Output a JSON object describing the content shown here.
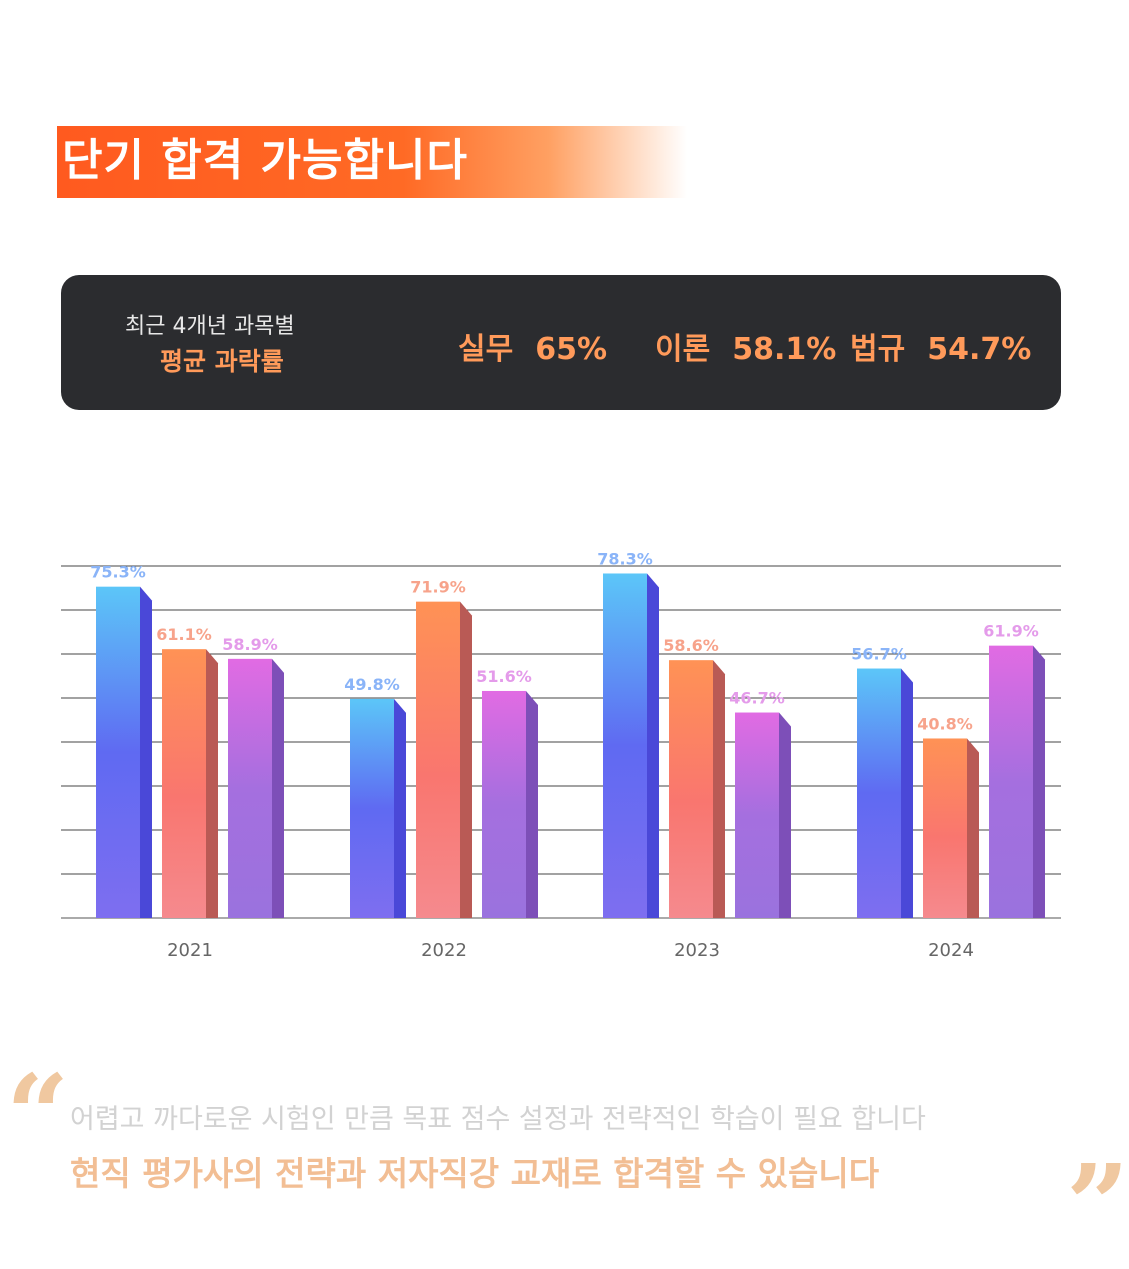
{
  "headline": {
    "highlight": "단기 합격 가능합니다"
  },
  "stats": {
    "label_line1": "최근 4개년 과목별",
    "label_line2": "평균 과락률",
    "items": [
      {
        "name": "실무",
        "value": "65%"
      },
      {
        "name": "이론",
        "value": "58.1%"
      },
      {
        "name": "법규",
        "value": "54.7%"
      }
    ]
  },
  "colors": {
    "accent": "#ff6a25",
    "stat_text": "#ff9a5a",
    "box_bg": "#2b2c2f",
    "series_blue": "#5b78f5",
    "series_orange": "#fb8a60",
    "series_purple": "#b06ee0"
  },
  "chart_data": {
    "type": "bar",
    "categories": [
      "2021",
      "2022",
      "2023",
      "2024"
    ],
    "series": [
      {
        "values": [
          75.3,
          49.8,
          78.3,
          56.7
        ],
        "labels": [
          "75.3%",
          "49.8%",
          "78.3%",
          "56.7%"
        ]
      },
      {
        "values": [
          61.1,
          71.9,
          58.6,
          40.8
        ],
        "labels": [
          "61.1%",
          "71.9%",
          "58.6%",
          "40.8%"
        ]
      },
      {
        "values": [
          58.9,
          51.6,
          46.7,
          61.9
        ],
        "labels": [
          "58.9%",
          "51.6%",
          "46.7%",
          "61.9%"
        ]
      }
    ],
    "ylim": [
      0,
      80
    ],
    "grid": true
  },
  "footer": {
    "line1": "어렵고 까다로운 시험인 만큼 목표 점수 설정과 전략적인 학습이 필요 합니다",
    "line2": "현직 평가사의 전략과 저자직강 교재로 합격할 수 있습니다",
    "quote_open": "“",
    "quote_close": "”"
  }
}
